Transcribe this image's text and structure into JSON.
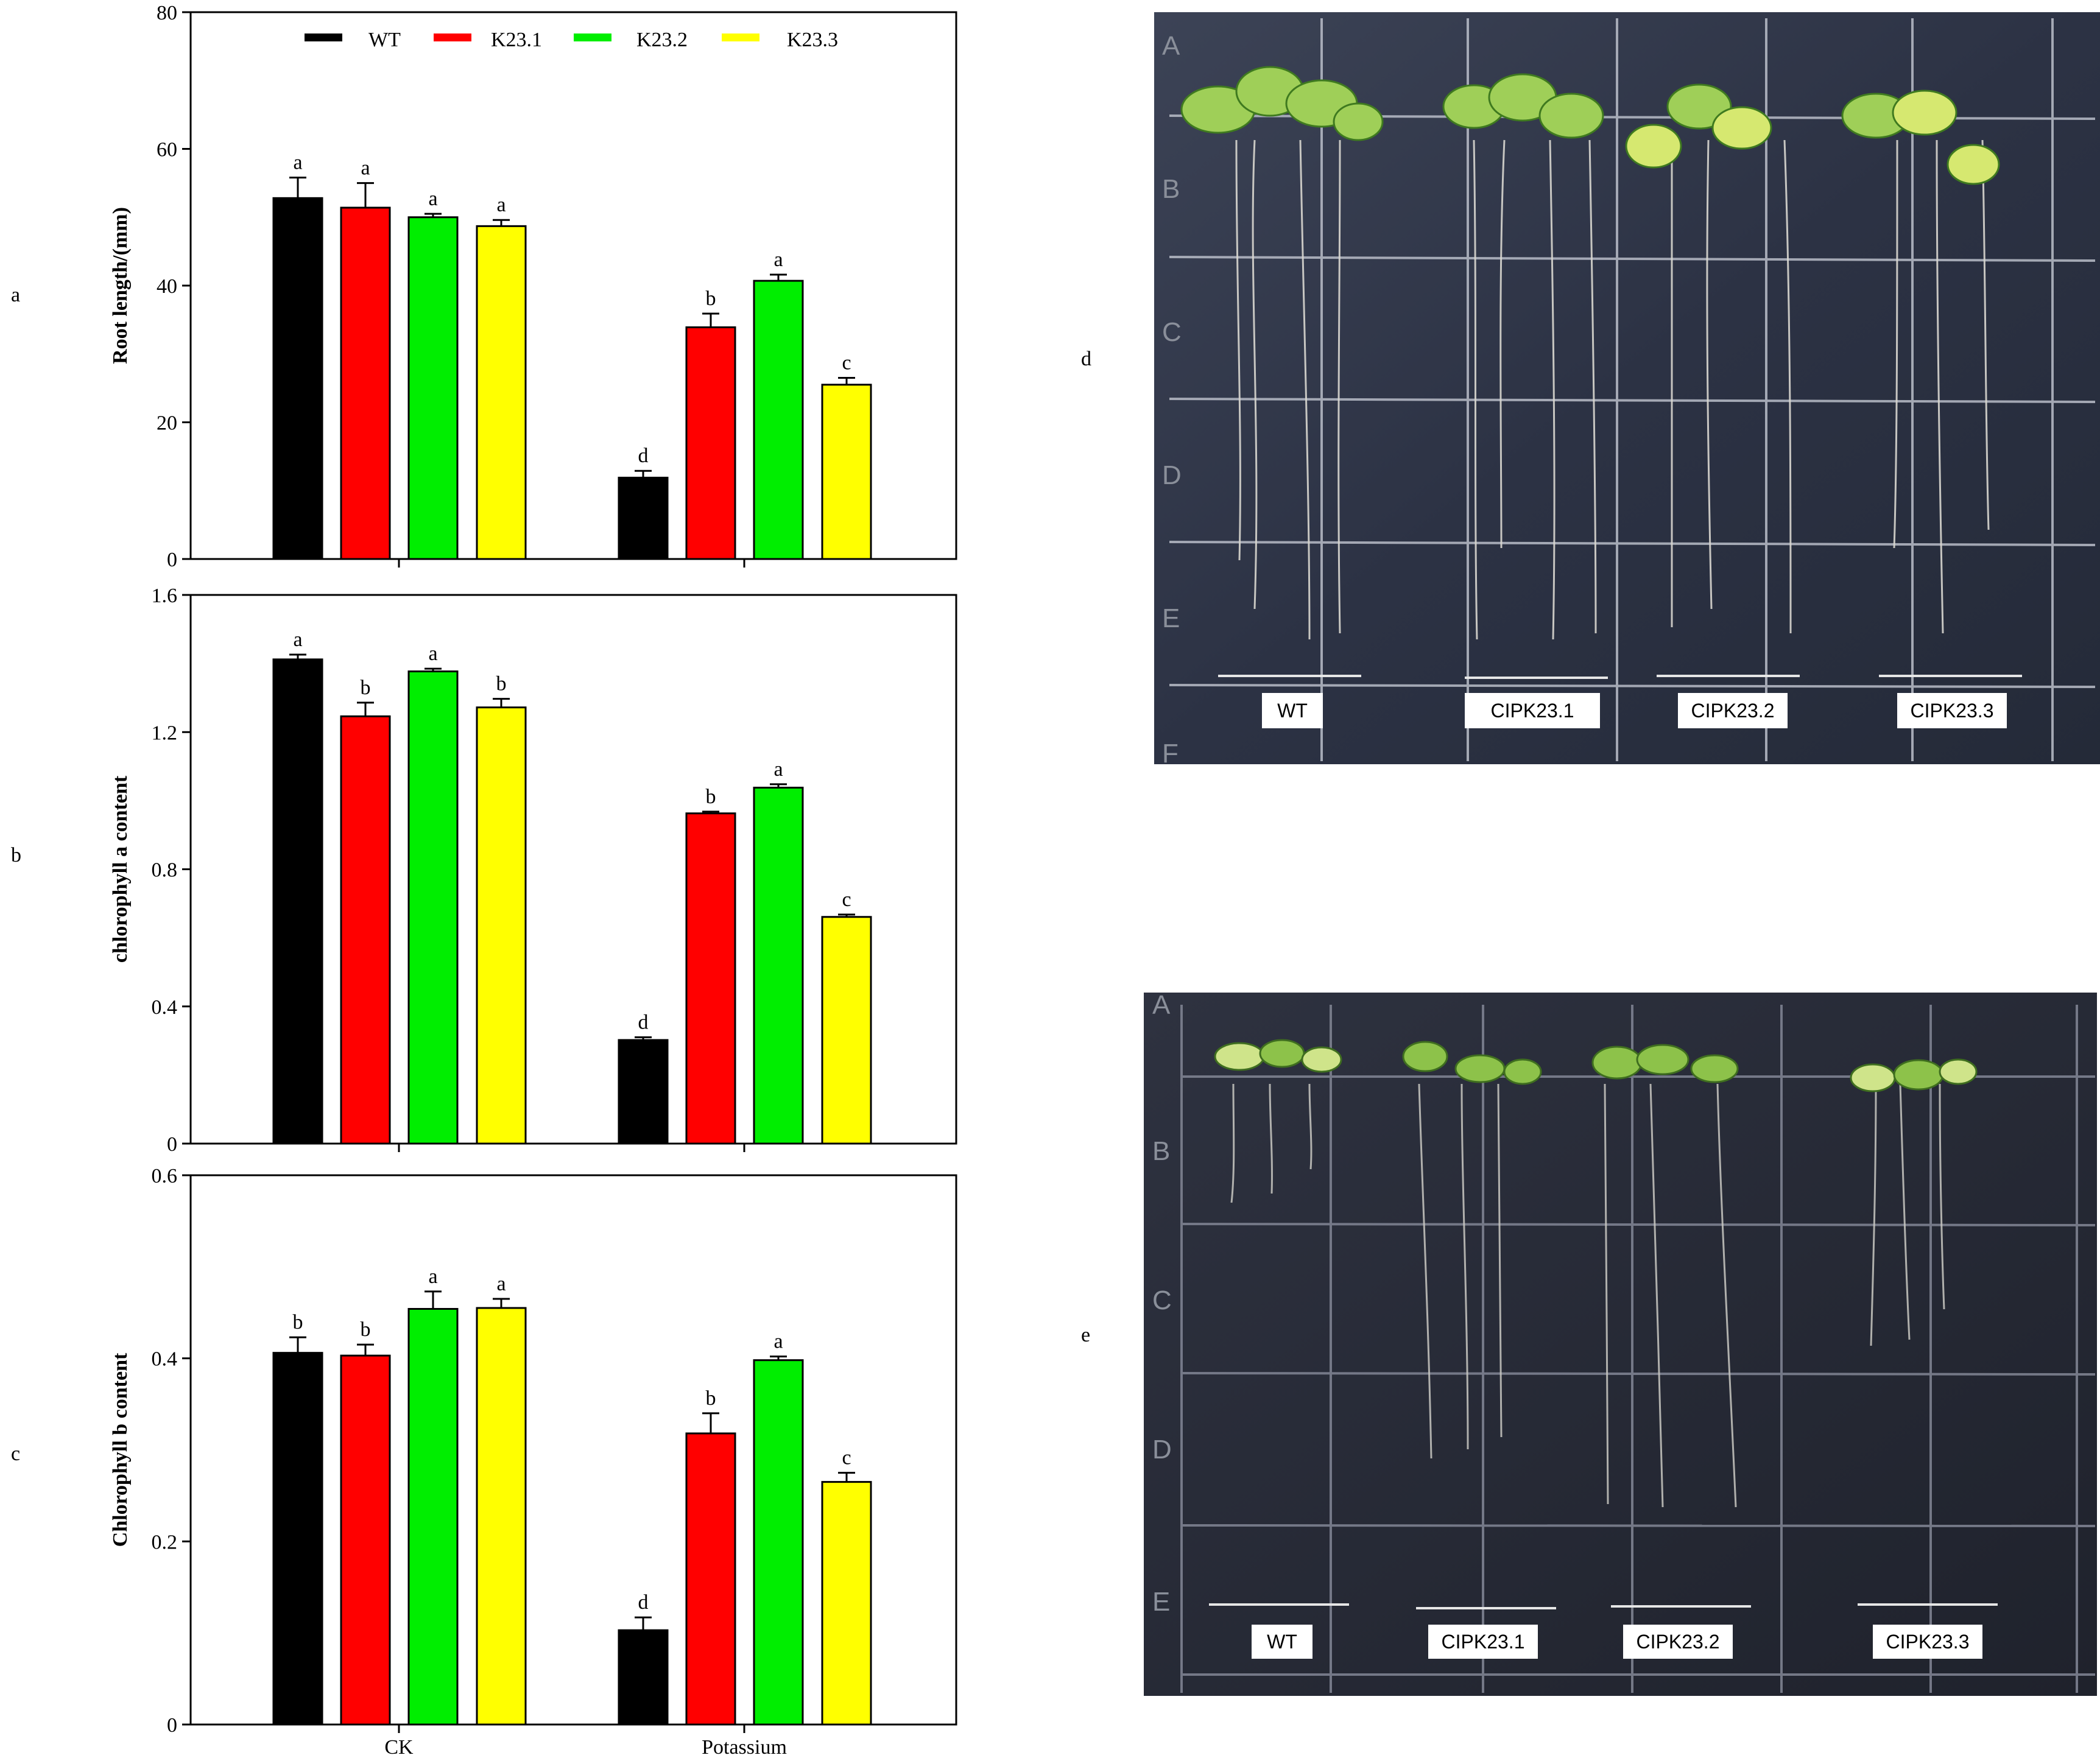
{
  "panel_letters": {
    "a": "a",
    "b": "b",
    "c": "c",
    "d": "d",
    "e": "e"
  },
  "legend": [
    "WT",
    "K23.1",
    "K23.2",
    "K23.3"
  ],
  "colors": {
    "WT": "#000000",
    "K23.1": "#ff0000",
    "K23.2": "#00ee00",
    "K23.3": "#ffff00"
  },
  "chart_data": [
    {
      "type": "bar",
      "panel": "a",
      "ylabel": "Root length/(mm)",
      "categories": [
        "CK",
        "Potassium"
      ],
      "ylim": [
        0,
        80
      ],
      "yticks": [
        "0",
        "20",
        "40",
        "60",
        "80"
      ],
      "series": [
        {
          "name": "WT",
          "values": [
            52.8,
            11.9
          ],
          "errors": [
            3.0,
            1.0
          ],
          "letters": [
            "a",
            "d"
          ]
        },
        {
          "name": "K23.1",
          "values": [
            51.4,
            33.9
          ],
          "errors": [
            3.6,
            2.0
          ],
          "letters": [
            "a",
            "b"
          ]
        },
        {
          "name": "K23.2",
          "values": [
            50.0,
            40.7
          ],
          "errors": [
            0.5,
            0.9
          ],
          "letters": [
            "a",
            "a"
          ]
        },
        {
          "name": "K23.3",
          "values": [
            48.7,
            25.5
          ],
          "errors": [
            0.9,
            1.0
          ],
          "letters": [
            "a",
            "c"
          ]
        }
      ]
    },
    {
      "type": "bar",
      "panel": "b",
      "ylabel": "chlorophyll  a content",
      "categories": [
        "CK",
        "Potassium"
      ],
      "ylim": [
        0,
        1.6
      ],
      "yticks": [
        "0",
        "0.4",
        "0.8",
        "1.2",
        "1.6"
      ],
      "series": [
        {
          "name": "WT",
          "values": [
            1.412,
            0.302
          ],
          "errors": [
            0.014,
            0.008
          ],
          "letters": [
            "a",
            "d"
          ]
        },
        {
          "name": "K23.1",
          "values": [
            1.246,
            0.963
          ],
          "errors": [
            0.04,
            0.005
          ],
          "letters": [
            "b",
            "b"
          ]
        },
        {
          "name": "K23.2",
          "values": [
            1.377,
            1.038
          ],
          "errors": [
            0.008,
            0.01
          ],
          "letters": [
            "a",
            "a"
          ]
        },
        {
          "name": "K23.3",
          "values": [
            1.272,
            0.661
          ],
          "errors": [
            0.025,
            0.007
          ],
          "letters": [
            "b",
            "c"
          ]
        }
      ]
    },
    {
      "type": "bar",
      "panel": "c",
      "ylabel": "Chlorophyll b content",
      "xlabel": "",
      "categories": [
        "CK",
        "Potassium"
      ],
      "ylim": [
        0,
        0.6
      ],
      "yticks": [
        "0",
        "0.2",
        "0.4",
        "0.6"
      ],
      "series": [
        {
          "name": "WT",
          "values": [
            0.406,
            0.103
          ],
          "errors": [
            0.017,
            0.014
          ],
          "letters": [
            "b",
            "d"
          ]
        },
        {
          "name": "K23.1",
          "values": [
            0.403,
            0.318
          ],
          "errors": [
            0.012,
            0.022
          ],
          "letters": [
            "b",
            "b"
          ]
        },
        {
          "name": "K23.2",
          "values": [
            0.454,
            0.398
          ],
          "errors": [
            0.019,
            0.004
          ],
          "letters": [
            "a",
            "a"
          ]
        },
        {
          "name": "K23.3",
          "values": [
            0.455,
            0.265
          ],
          "errors": [
            0.01,
            0.01
          ],
          "letters": [
            "a",
            "c"
          ]
        }
      ]
    }
  ],
  "photos": {
    "d": {
      "labels": [
        "WT",
        "CIPK23.1",
        "CIPK23.2",
        "CIPK23.3"
      ],
      "row_letters": [
        "A",
        "B",
        "C",
        "D",
        "E",
        "F"
      ]
    },
    "e": {
      "labels": [
        "WT",
        "CIPK23.1",
        "CIPK23.2",
        "CIPK23.3"
      ],
      "row_letters": [
        "A",
        "B",
        "C",
        "D",
        "E"
      ]
    }
  }
}
